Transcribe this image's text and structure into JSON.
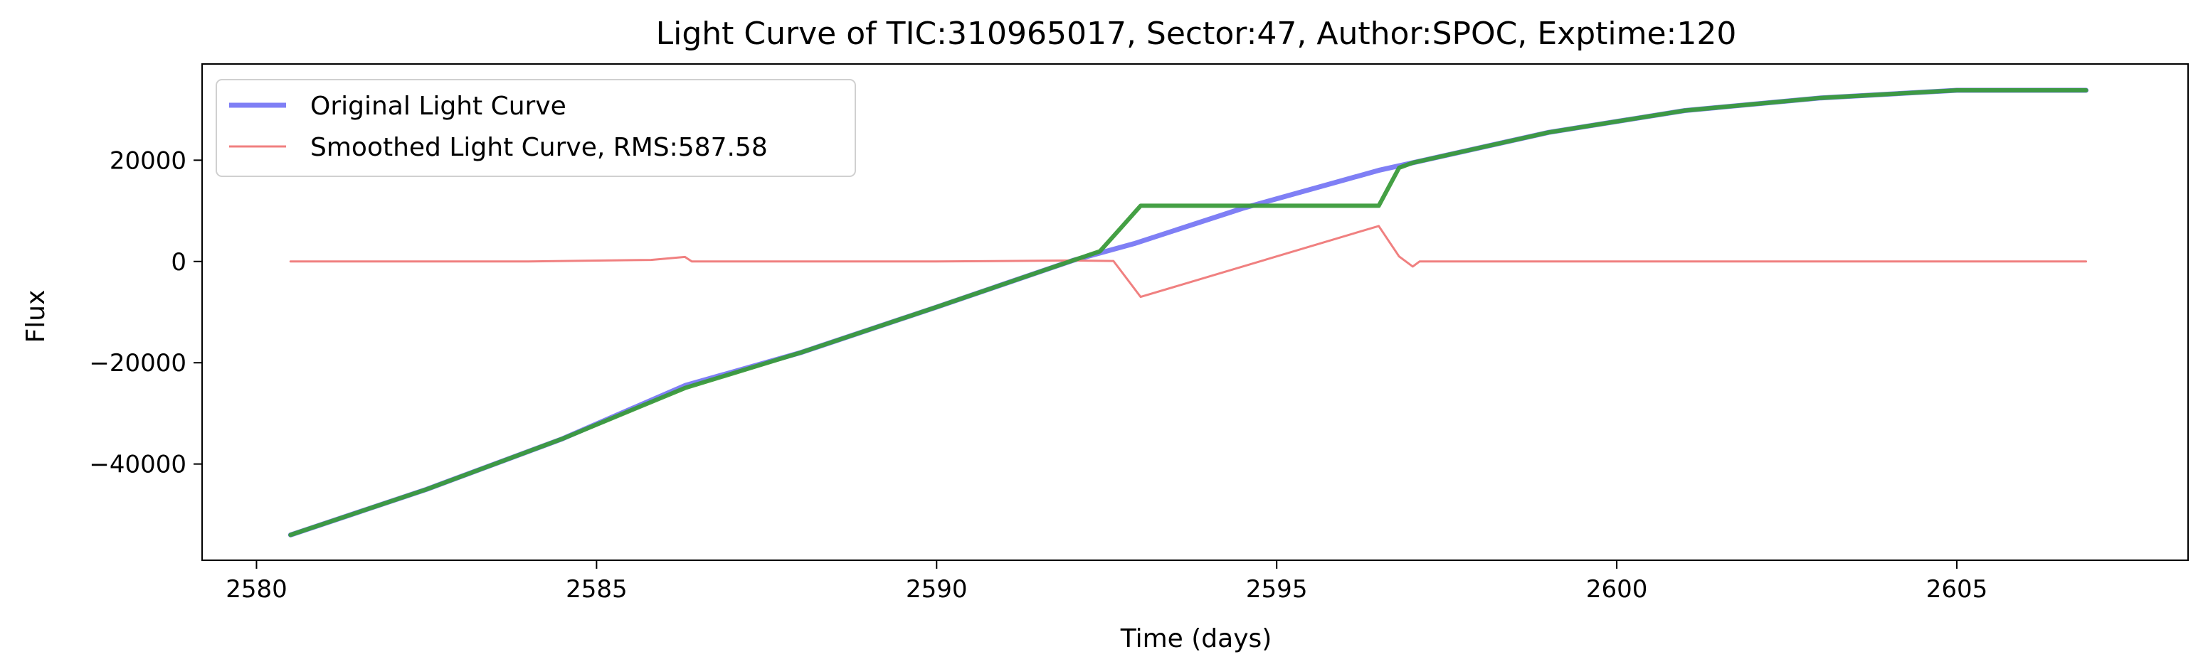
{
  "chart_data": {
    "type": "line",
    "title": "Light Curve of TIC:310965017, Sector:47, Author:SPOC, Exptime:120",
    "xlabel": "Time (days)",
    "ylabel": "Flux",
    "xlim": [
      2579.2,
      2608.4
    ],
    "ylim": [
      -59000,
      39000
    ],
    "xticks": [
      2580,
      2585,
      2590,
      2595,
      2600,
      2605
    ],
    "yticks": [
      -40000,
      -20000,
      0,
      20000
    ],
    "ytick_labels": [
      "−40000",
      "−20000",
      "0",
      "20000"
    ],
    "grid": false,
    "legend_position": "top-left",
    "series": [
      {
        "name": "Original Light Curve",
        "color": "#7f7ff5",
        "x": [
          2580.5,
          2582.5,
          2584.5,
          2586.3,
          2588.0,
          2590.0,
          2592.0,
          2592.9,
          2594.5,
          2596.5,
          2597.0,
          2599.0,
          2601.0,
          2603.0,
          2605.0,
          2606.9
        ],
        "y": [
          -54000,
          -45000,
          -35000,
          -24500,
          -18000,
          -9000,
          200,
          3500,
          10500,
          18000,
          19500,
          25500,
          29800,
          32300,
          33800,
          33800
        ]
      },
      {
        "name": "Smoothed Light Curve, RMS:587.58",
        "color": "#f08080",
        "x": [
          2580.5,
          2584.0,
          2585.8,
          2586.3,
          2586.4,
          2590.0,
          2592.0,
          2592.6,
          2593.0,
          2596.5,
          2596.8,
          2597.0,
          2597.1,
          2600.0,
          2603.0,
          2606.9
        ],
        "y": [
          0,
          0,
          300,
          900,
          0,
          0,
          200,
          100,
          -7000,
          7000,
          1000,
          -1000,
          0,
          0,
          0,
          0
        ]
      },
      {
        "color": "#3a9b3a",
        "x": [
          2580.5,
          2582.5,
          2584.5,
          2586.3,
          2588.0,
          2590.0,
          2592.0,
          2592.4,
          2592.7,
          2593.0,
          2596.5,
          2596.8,
          2597.0,
          2599.0,
          2601.0,
          2603.0,
          2605.0,
          2606.9
        ],
        "y": [
          -54000,
          -45000,
          -35000,
          -25000,
          -18000,
          -9000,
          200,
          2000,
          6500,
          11000,
          11000,
          18500,
          19500,
          25500,
          29800,
          32300,
          33800,
          33800
        ]
      }
    ]
  }
}
